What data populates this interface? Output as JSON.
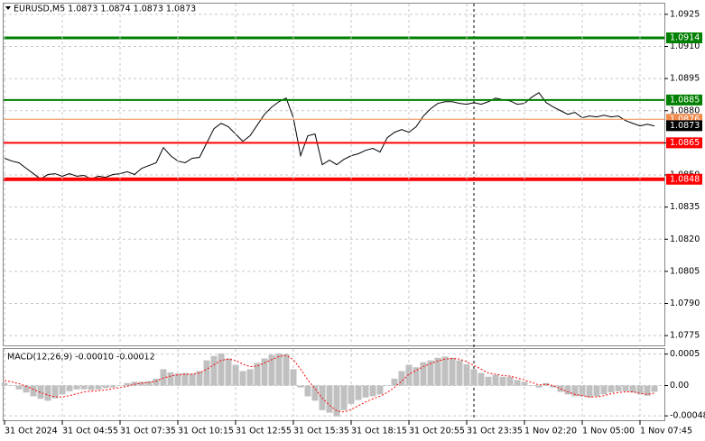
{
  "chart_data": [
    {
      "type": "line",
      "title": "EURUSD,M5  1.0873 1.0874 1.0873 1.0873",
      "series": [
        {
          "color": "#000000",
          "values": [
            1.08578,
            1.08565,
            1.08557,
            1.08531,
            1.08506,
            1.08481,
            1.08502,
            1.08506,
            1.08494,
            1.08506,
            1.08494,
            1.08498,
            1.08481,
            1.08494,
            1.08489,
            1.08502,
            1.08506,
            1.08515,
            1.08502,
            1.08531,
            1.08544,
            1.08557,
            1.08628,
            1.0859,
            1.08565,
            1.08557,
            1.08578,
            1.08582,
            1.08649,
            1.08716,
            1.08741,
            1.08725,
            1.08691,
            1.08657,
            1.08683,
            1.08733,
            1.08783,
            1.08817,
            1.08842,
            1.08859,
            1.08767,
            1.0859,
            1.08683,
            1.08691,
            1.08548,
            1.08569,
            1.08548,
            1.08573,
            1.0859,
            1.08599,
            1.08615,
            1.08624,
            1.08607,
            1.08674,
            1.08699,
            1.08712,
            1.08699,
            1.08725,
            1.08775,
            1.08809,
            1.08834,
            1.08842,
            1.08842,
            1.08834,
            1.0883,
            1.08838,
            1.0883,
            1.08842,
            1.08859,
            1.08851,
            1.08846,
            1.0883,
            1.08834,
            1.08863,
            1.08884,
            1.08838,
            1.08817,
            1.088,
            1.08783,
            1.08792,
            1.08767,
            1.08775,
            1.08771,
            1.08779,
            1.08771,
            1.08775,
            1.08754,
            1.08741,
            1.08729,
            1.08737,
            1.08729
          ]
        }
      ],
      "ylim": [
        1.077,
        1.093
      ],
      "yticks": [
        1.0925,
        {
          "value": 1.091,
          "label": "1.0910"
        },
        1.0895,
        {
          "value": 1.088,
          "label": "1.0880"
        },
        1.0865,
        {
          "value": 1.085,
          "label": "1.0850"
        },
        1.0835,
        {
          "value": 1.082,
          "label": "1.0820"
        },
        1.0805,
        {
          "value": 1.079,
          "label": "1.0790"
        },
        1.0775
      ],
      "grid": true,
      "levels": [
        {
          "value": 1.0914,
          "color": "#008000",
          "width": 3
        },
        {
          "value": 1.0885,
          "color": "#008000",
          "width": 2
        },
        {
          "value": 1.0876,
          "color": "#f08a4b",
          "width": 1
        },
        {
          "value": 1.0865,
          "color": "#ff0000",
          "width": 2
        },
        {
          "value": 1.0848,
          "color": "#ff0000",
          "width": 4
        }
      ],
      "last_price": 1.0873
    },
    {
      "type": "macd",
      "title": "MACD(12,26,9) -0.00010 -0.00012",
      "categories": [
        "31 Oct 2024",
        null,
        null,
        null,
        null,
        null,
        null,
        null,
        "31 Oct 04:55",
        null,
        null,
        null,
        null,
        null,
        null,
        null,
        "31 Oct 07:35",
        null,
        null,
        null,
        null,
        null,
        null,
        null,
        "31 Oct 10:15",
        null,
        null,
        null,
        null,
        null,
        null,
        null,
        "31 Oct 12:55",
        null,
        null,
        null,
        null,
        null,
        null,
        null,
        "31 Oct 15:35",
        null,
        null,
        null,
        null,
        null,
        null,
        null,
        "31 Oct 18:15",
        null,
        null,
        null,
        null,
        null,
        null,
        null,
        "31 Oct 20:55",
        null,
        null,
        null,
        null,
        null,
        null,
        null,
        "31 Oct 23:35",
        null,
        null,
        null,
        null,
        null,
        null,
        null,
        "1 Nov 02:20",
        null,
        null,
        null,
        null,
        null,
        null,
        null,
        "1 Nov 05:00",
        null,
        null,
        null,
        null,
        null,
        null,
        null,
        "1 Nov 07:45",
        null,
        null
      ],
      "series": [
        {
          "style": "histogram",
          "color": "#c0c0c0",
          "values": [
            4e-05,
            0,
            -6e-05,
            -0.00011,
            -0.00017,
            -0.00021,
            -0.00024,
            -0.0002,
            -0.00014,
            -9e-05,
            -6e-05,
            -6e-05,
            -7e-05,
            -6e-05,
            -4e-05,
            -3e-05,
            0,
            4e-05,
            6e-05,
            6e-05,
            7e-05,
            0.00011,
            0.00026,
            0.00021,
            0.00019,
            0.0002,
            0.00019,
            0.00023,
            0.0004,
            0.00047,
            0.00051,
            0.00043,
            0.00033,
            0.00023,
            0.00026,
            0.00036,
            0.00043,
            0.00049,
            0.00051,
            0.0005,
            0.00026,
            -3e-05,
            -0.00017,
            -0.00024,
            -0.00039,
            -0.00043,
            -0.00049,
            -0.00039,
            -0.00029,
            -0.00023,
            -0.00019,
            -0.00017,
            -0.00014,
            0,
            0.00011,
            0.00023,
            0.00033,
            0.00029,
            0.00037,
            0.0004,
            0.00044,
            0.00046,
            0.00044,
            0.0004,
            0.00034,
            0.00026,
            0.0002,
            0.00014,
            0.00017,
            0.00014,
            0.00014,
            9e-05,
            6e-05,
            0,
            -3e-05,
            4e-05,
            -3e-05,
            -0.0001,
            -0.00014,
            -0.00017,
            -0.00017,
            -0.00019,
            -0.00017,
            -0.00014,
            -0.00011,
            -9e-05,
            -9e-05,
            -0.00011,
            -0.00014,
            -0.00016,
            -0.0001
          ]
        },
        {
          "style": "dotted",
          "color": "#ff0000",
          "values": [
            8e-05,
            6e-05,
            3e-05,
            -1e-05,
            -6e-05,
            -0.00011,
            -0.00015,
            -0.00018,
            -0.00018,
            -0.00016,
            -0.00013,
            -0.0001,
            -9e-05,
            -8e-05,
            -7e-05,
            -5e-05,
            -3e-05,
            -1e-05,
            2e-05,
            4e-05,
            5e-05,
            7e-05,
            0.00012,
            0.00015,
            0.00017,
            0.00018,
            0.00018,
            0.0002,
            0.00026,
            0.00033,
            0.0004,
            0.00042,
            0.0004,
            0.00034,
            0.0003,
            0.00031,
            0.00036,
            0.00041,
            0.00046,
            0.00048,
            0.00041,
            0.00026,
            9e-05,
            -5e-05,
            -0.0002,
            -0.00031,
            -0.0004,
            -0.00042,
            -0.00038,
            -0.00032,
            -0.00026,
            -0.00021,
            -0.00017,
            -0.00011,
            -3e-05,
            7e-05,
            0.00018,
            0.00024,
            0.0003,
            0.00035,
            0.00039,
            0.00042,
            0.00043,
            0.00042,
            0.00038,
            0.00032,
            0.00026,
            0.0002,
            0.00018,
            0.00016,
            0.00015,
            0.00012,
            9e-05,
            5e-05,
            1e-05,
            2e-05,
            0,
            -5e-05,
            -0.0001,
            -0.00014,
            -0.00016,
            -0.00018,
            -0.00018,
            -0.00016,
            -0.00013,
            -0.00011,
            -0.0001,
            -0.0001,
            -0.00012,
            -0.00014,
            -0.00012
          ]
        }
      ],
      "ylim": [
        -0.00055,
        0.00058
      ],
      "yticks": [
        0.0005,
        {
          "value": 0,
          "label": "0.00"
        },
        -0.00048
      ],
      "grid": true
    }
  ]
}
